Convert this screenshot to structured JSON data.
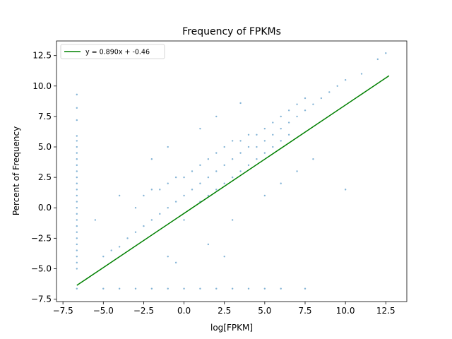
{
  "chart_data": {
    "type": "scatter",
    "title": "Frequency of FPKMs",
    "xlabel": "log[FPKM]",
    "ylabel": "Percent of Frequency",
    "xlim": [
      -7.9,
      13.8
    ],
    "ylim": [
      -7.7,
      13.7
    ],
    "xticks": [
      -7.5,
      -5.0,
      -2.5,
      0.0,
      2.5,
      5.0,
      7.5,
      10.0,
      12.5
    ],
    "yticks": [
      -7.5,
      -5.0,
      -2.5,
      0.0,
      2.5,
      5.0,
      7.5,
      10.0,
      12.5
    ],
    "xtick_labels": [
      "−7.5",
      "−5.0",
      "−2.5",
      "0.0",
      "2.5",
      "5.0",
      "7.5",
      "10.0",
      "12.5"
    ],
    "ytick_labels": [
      "−7.5",
      "−5.0",
      "−2.5",
      "0.0",
      "2.5",
      "5.0",
      "7.5",
      "10.0",
      "12.5"
    ],
    "grid": false,
    "legend_position": "top-left",
    "scatter_color": "#1f77b4",
    "fit_color": "#008000",
    "series": [
      {
        "kind": "scatter",
        "points": [
          [
            -6.64,
            -6.64
          ],
          [
            -6.64,
            5.9
          ],
          [
            -6.64,
            5.5
          ],
          [
            -6.64,
            5.0
          ],
          [
            -6.64,
            4.5
          ],
          [
            -6.64,
            4.0
          ],
          [
            -6.64,
            3.5
          ],
          [
            -6.64,
            3.0
          ],
          [
            -6.64,
            2.5
          ],
          [
            -6.64,
            2.0
          ],
          [
            -6.64,
            1.5
          ],
          [
            -6.64,
            1.0
          ],
          [
            -6.64,
            0.5
          ],
          [
            -6.64,
            0.0
          ],
          [
            -6.64,
            -0.5
          ],
          [
            -6.64,
            -1.0
          ],
          [
            -6.64,
            -1.5
          ],
          [
            -6.64,
            -2.0
          ],
          [
            -6.64,
            -2.5
          ],
          [
            -6.64,
            -3.0
          ],
          [
            -6.64,
            -3.5
          ],
          [
            -6.64,
            -4.0
          ],
          [
            -6.64,
            -4.5
          ],
          [
            -6.64,
            -5.0
          ],
          [
            -6.64,
            9.3
          ],
          [
            -6.64,
            8.2
          ],
          [
            -6.64,
            7.2
          ],
          [
            -5.0,
            -6.64
          ],
          [
            -4.0,
            -6.64
          ],
          [
            -3.0,
            -6.64
          ],
          [
            -2.0,
            -6.64
          ],
          [
            -1.0,
            -6.64
          ],
          [
            0.0,
            -6.64
          ],
          [
            1.0,
            -6.64
          ],
          [
            2.0,
            -6.64
          ],
          [
            3.0,
            -6.64
          ],
          [
            4.0,
            -6.64
          ],
          [
            5.0,
            -6.64
          ],
          [
            6.0,
            -6.64
          ],
          [
            7.5,
            -6.64
          ],
          [
            -5.0,
            -4.0
          ],
          [
            -4.5,
            -3.5
          ],
          [
            -4.0,
            -3.2
          ],
          [
            -3.5,
            -2.5
          ],
          [
            -3.0,
            -2.0
          ],
          [
            -3.0,
            0.0
          ],
          [
            -2.5,
            -1.5
          ],
          [
            -2.5,
            1.0
          ],
          [
            -2.0,
            -1.0
          ],
          [
            -2.0,
            1.5
          ],
          [
            -1.5,
            -0.5
          ],
          [
            -1.5,
            1.5
          ],
          [
            -1.0,
            0.0
          ],
          [
            -1.0,
            2.0
          ],
          [
            -0.5,
            0.5
          ],
          [
            -0.5,
            2.5
          ],
          [
            0.0,
            1.0
          ],
          [
            0.0,
            2.5
          ],
          [
            0.0,
            -1.0
          ],
          [
            0.5,
            1.5
          ],
          [
            0.5,
            3.0
          ],
          [
            1.0,
            2.0
          ],
          [
            1.0,
            3.5
          ],
          [
            1.0,
            0.5
          ],
          [
            1.5,
            2.5
          ],
          [
            1.5,
            4.0
          ],
          [
            1.5,
            1.0
          ],
          [
            2.0,
            3.0
          ],
          [
            2.0,
            4.5
          ],
          [
            2.0,
            1.5
          ],
          [
            2.5,
            3.5
          ],
          [
            2.5,
            5.0
          ],
          [
            2.5,
            2.0
          ],
          [
            3.0,
            4.0
          ],
          [
            3.0,
            5.5
          ],
          [
            3.0,
            2.5
          ],
          [
            3.5,
            4.5
          ],
          [
            3.5,
            5.5
          ],
          [
            3.5,
            3.0
          ],
          [
            4.0,
            5.0
          ],
          [
            4.0,
            6.0
          ],
          [
            4.0,
            3.5
          ],
          [
            4.5,
            5.0
          ],
          [
            4.5,
            6.0
          ],
          [
            4.5,
            4.0
          ],
          [
            5.0,
            5.5
          ],
          [
            5.0,
            6.5
          ],
          [
            5.0,
            4.5
          ],
          [
            5.5,
            6.0
          ],
          [
            5.5,
            7.0
          ],
          [
            5.5,
            5.0
          ],
          [
            6.0,
            6.5
          ],
          [
            6.0,
            7.5
          ],
          [
            6.0,
            5.5
          ],
          [
            6.5,
            7.0
          ],
          [
            6.5,
            8.0
          ],
          [
            6.5,
            6.0
          ],
          [
            7.0,
            7.5
          ],
          [
            7.0,
            8.5
          ],
          [
            7.5,
            8.0
          ],
          [
            7.5,
            9.0
          ],
          [
            8.0,
            8.5
          ],
          [
            8.5,
            9.0
          ],
          [
            9.0,
            9.5
          ],
          [
            9.5,
            10.0
          ],
          [
            10.0,
            10.5
          ],
          [
            11.0,
            11.0
          ],
          [
            12.0,
            12.2
          ],
          [
            12.5,
            12.7
          ],
          [
            3.5,
            8.6
          ],
          [
            2.0,
            7.5
          ],
          [
            1.0,
            6.5
          ],
          [
            -1.0,
            5.0
          ],
          [
            -2.0,
            4.0
          ],
          [
            -5.5,
            -1.0
          ],
          [
            -4.0,
            1.0
          ],
          [
            5.0,
            1.0
          ],
          [
            6.0,
            2.0
          ],
          [
            7.0,
            3.0
          ],
          [
            8.0,
            4.0
          ],
          [
            10.0,
            1.5
          ],
          [
            3.0,
            -1.0
          ],
          [
            -1.0,
            -4.0
          ],
          [
            -0.5,
            -4.5
          ],
          [
            1.5,
            -3.0
          ],
          [
            2.5,
            -4.0
          ]
        ]
      },
      {
        "kind": "line",
        "name": "y = 0.890x + -0.46",
        "slope": 0.89,
        "intercept": -0.46,
        "x_range": [
          -6.64,
          12.7
        ]
      }
    ]
  }
}
